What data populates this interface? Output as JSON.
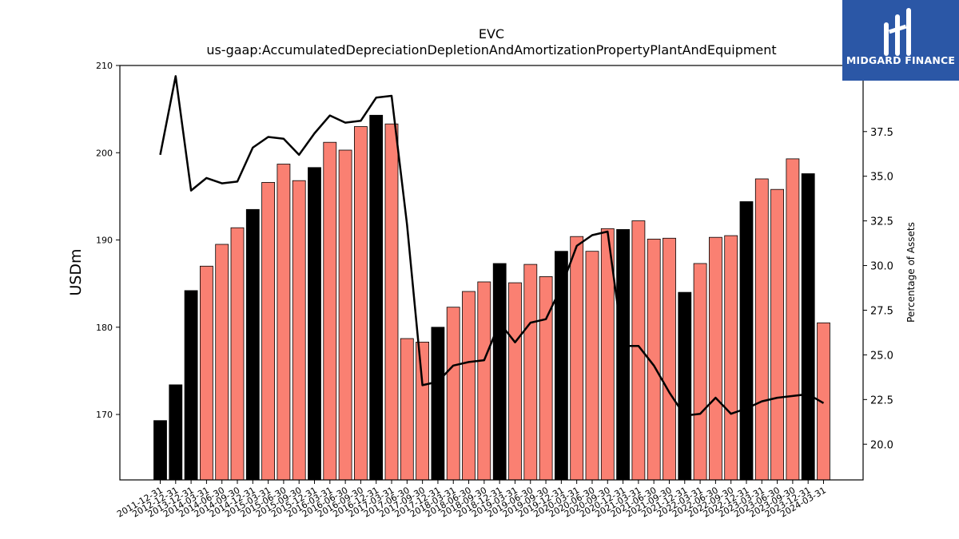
{
  "header": {
    "ticker": "EVC",
    "metric": "us-gaap:AccumulatedDepreciationDepletionAndAmortizationPropertyPlantAndEquipment"
  },
  "logo": {
    "name": "MIDGARD FINANCE",
    "bg_color": "#2b57a6",
    "text_color": "#ffffff"
  },
  "chart_data": {
    "type": "bar",
    "title": "EVC",
    "subtitle": "us-gaap:AccumulatedDepreciationDepletionAndAmortizationPropertyPlantAndEquipment",
    "ylabel": "USDm",
    "y2label": "Percentage of Assets",
    "ylim": [
      162.5,
      210
    ],
    "y2lim": [
      18.0,
      41.2
    ],
    "yticks": [
      170,
      180,
      190,
      200,
      210
    ],
    "y2ticks": [
      20.0,
      22.5,
      25.0,
      27.5,
      30.0,
      32.5,
      35.0,
      37.5
    ],
    "colors": {
      "annual": "#000000",
      "quarter": "#fa8072",
      "line": "#000000"
    },
    "categories": [
      "2011-12-31",
      "2012-12-31",
      "2013-12-31",
      "2014-03-31",
      "2014-06-30",
      "2014-09-30",
      "2014-12-31",
      "2015-03-31",
      "2015-06-30",
      "2015-09-30",
      "2015-12-31",
      "2016-03-31",
      "2016-06-30",
      "2016-09-30",
      "2016-12-31",
      "2017-03-31",
      "2017-06-30",
      "2017-09-30",
      "2017-12-31",
      "2018-03-31",
      "2018-06-30",
      "2018-09-30",
      "2018-12-31",
      "2019-03-31",
      "2019-06-30",
      "2019-09-30",
      "2019-12-31",
      "2020-03-31",
      "2020-06-30",
      "2020-09-30",
      "2020-12-31",
      "2021-03-31",
      "2021-06-30",
      "2021-09-30",
      "2021-12-31",
      "2022-03-31",
      "2022-06-30",
      "2022-09-30",
      "2022-12-31",
      "2023-03-31",
      "2023-06-30",
      "2023-09-30",
      "2023-12-31",
      "2024-03-31"
    ],
    "series": [
      {
        "values": [
          169.3,
          173.4,
          184.2,
          187.0,
          189.5,
          191.4,
          193.5,
          196.6,
          198.7,
          196.8,
          198.3,
          201.2,
          200.3,
          203.0,
          204.3,
          203.3,
          178.7,
          178.3,
          180.0,
          182.3,
          184.1,
          185.2,
          187.3,
          185.1,
          187.2,
          185.8,
          188.7,
          190.4,
          188.7,
          191.3,
          191.2,
          192.2,
          190.1,
          190.2,
          184.0,
          187.3,
          190.3,
          190.5,
          194.4,
          197.0,
          195.8,
          199.3,
          197.6,
          180.5
        ],
        "period": [
          "annual",
          "annual",
          "annual",
          "quarter",
          "quarter",
          "quarter",
          "annual",
          "quarter",
          "quarter",
          "quarter",
          "annual",
          "quarter",
          "quarter",
          "quarter",
          "annual",
          "quarter",
          "quarter",
          "quarter",
          "annual",
          "quarter",
          "quarter",
          "quarter",
          "annual",
          "quarter",
          "quarter",
          "quarter",
          "annual",
          "quarter",
          "quarter",
          "quarter",
          "annual",
          "quarter",
          "quarter",
          "quarter",
          "annual",
          "quarter",
          "quarter",
          "quarter",
          "annual",
          "quarter",
          "quarter",
          "quarter",
          "annual",
          "quarter"
        ]
      },
      {
        "axis": "right",
        "type": "line",
        "values": [
          36.2,
          40.6,
          34.2,
          34.9,
          34.6,
          34.7,
          36.6,
          37.2,
          37.1,
          36.2,
          37.4,
          38.4,
          38.0,
          38.1,
          39.4,
          39.5,
          32.3,
          23.3,
          23.5,
          24.4,
          24.6,
          24.7,
          26.8,
          25.7,
          26.8,
          27.0,
          28.8,
          31.1,
          31.7,
          31.9,
          25.5,
          25.5,
          24.4,
          22.9,
          21.6,
          21.7,
          22.6,
          21.7,
          22.0,
          22.4,
          22.6,
          22.7,
          22.8,
          22.3
        ]
      }
    ]
  }
}
